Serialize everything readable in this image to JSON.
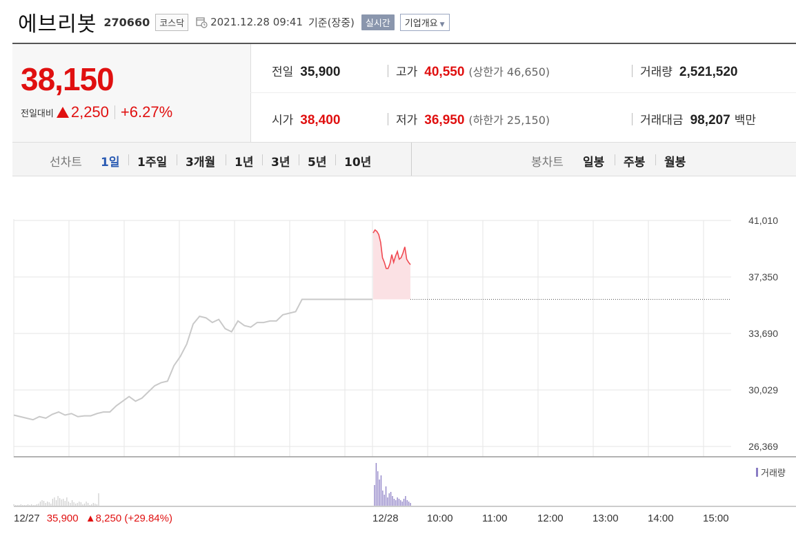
{
  "header": {
    "name": "에브리봇",
    "code": "270660",
    "market": "코스닥",
    "datetime": "2021.12.28 09:41",
    "basis": "기준(장중)",
    "realtime_label": "실시간",
    "company_label": "기업개요"
  },
  "price": {
    "current": "38,150",
    "change_label": "전일대비",
    "change_amount": "2,250",
    "change_pct": "+6.27%",
    "direction": "up"
  },
  "stats": {
    "prev_label": "전일",
    "prev": "35,900",
    "high_label": "고가",
    "high": "40,550",
    "upper_limit": "(상한가 46,650)",
    "volume_label": "거래량",
    "volume": "2,521,520",
    "open_label": "시가",
    "open": "38,400",
    "low_label": "저가",
    "low": "36,950",
    "lower_limit": "(하한가 25,150)",
    "amount_label": "거래대금",
    "amount": "98,207",
    "amount_unit": "백만"
  },
  "tabs": {
    "line_label": "선차트",
    "line": [
      "1일",
      "1주일",
      "3개월",
      "1년",
      "3년",
      "5년",
      "10년"
    ],
    "active": "1일",
    "candle_label": "봉차트",
    "candle": [
      "일봉",
      "주봉",
      "월봉"
    ]
  },
  "chart_data": {
    "type": "line",
    "y_ticks": [
      "41,010",
      "37,350",
      "33,690",
      "30,029",
      "26,369"
    ],
    "ylim": [
      26369,
      41010
    ],
    "x_ticks": [
      "12/27",
      "12/28",
      "10:00",
      "11:00",
      "12:00",
      "13:00",
      "14:00",
      "15:00"
    ],
    "prev_close": 35900,
    "series": [
      {
        "values": [
          28400,
          28300,
          28200,
          28100,
          28300,
          28200,
          28450,
          28600,
          28400,
          28500,
          28300,
          28350,
          28350,
          28500,
          28600,
          28600,
          29000,
          29300,
          29600,
          29300,
          29500,
          29900,
          30300,
          30500,
          30600,
          31600,
          32200,
          33000,
          34300,
          34800,
          34700,
          34400,
          34600,
          34000,
          33800,
          34500,
          34200,
          34100,
          34400,
          34400,
          34500,
          34500,
          34900,
          35000,
          35100,
          35900,
          35900,
          35900,
          35900,
          35900,
          35900,
          35900,
          35900,
          35900,
          35900,
          35900,
          35900
        ]
      },
      {
        "values": [
          40200,
          40400,
          40300,
          40100,
          39600,
          38600,
          38300,
          37900,
          37900,
          38200,
          38800,
          38300,
          38700,
          39000,
          38500,
          38600,
          38900,
          39300,
          38500,
          38300,
          38150
        ]
      }
    ],
    "volume_label": "거래량",
    "volume_day1": [
      2,
      1,
      1,
      1,
      2,
      1,
      1,
      1,
      2,
      1,
      2,
      1,
      1,
      2,
      3,
      6,
      8,
      7,
      4,
      6,
      5,
      3,
      10,
      12,
      8,
      14,
      11,
      9,
      10,
      7,
      12,
      6,
      4,
      8,
      5,
      3,
      4,
      6,
      5,
      2,
      3,
      6,
      4,
      1,
      2,
      4,
      3,
      2,
      18
    ],
    "volume_day2": [
      30,
      62,
      50,
      38,
      44,
      22,
      16,
      28,
      12,
      18,
      20,
      14,
      10,
      8,
      12,
      10,
      8,
      6,
      10,
      14,
      8,
      6,
      4
    ]
  },
  "prev_day": {
    "date": "12/27",
    "close": "35,900",
    "change": "8,250",
    "pct": "(+29.84%)"
  }
}
